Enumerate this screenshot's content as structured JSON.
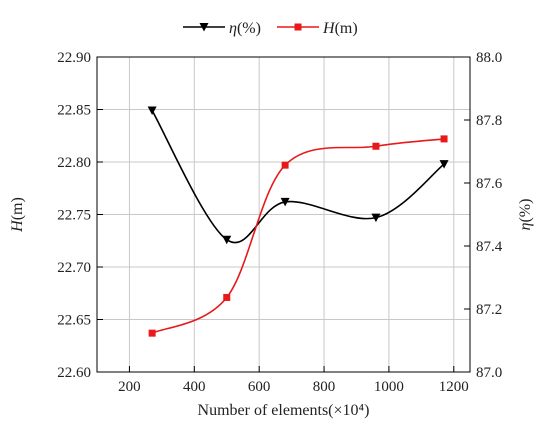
{
  "chart_data": {
    "type": "line",
    "xlabel": "Number of elements(×10⁴)",
    "x_ticks": [
      "200",
      "400",
      "600",
      "800",
      "1000",
      "1200"
    ],
    "xlim": [
      100,
      1250
    ],
    "left_axis": {
      "label_italic": "H",
      "label_rest": "(m)",
      "ylim": [
        22.6,
        22.9
      ],
      "ticks": [
        "22.60",
        "22.65",
        "22.70",
        "22.75",
        "22.80",
        "22.85",
        "22.90"
      ]
    },
    "right_axis": {
      "label_italic": "η",
      "label_rest": "(%)",
      "ylim": [
        87.0,
        88.0
      ],
      "ticks": [
        "87.0",
        "87.2",
        "87.4",
        "87.6",
        "87.8",
        "88.0"
      ]
    },
    "grid": true,
    "legend_position": "top-center",
    "series": [
      {
        "name_italic": "η",
        "name_rest": "(%)",
        "axis": "right",
        "color": "#000000",
        "marker": "triangle-down",
        "x": [
          270,
          500,
          680,
          960,
          1170
        ],
        "y": [
          87.83,
          87.42,
          87.54,
          87.49,
          87.66
        ]
      },
      {
        "name_italic": "H",
        "name_rest": "(m)",
        "axis": "left",
        "color": "#e8191a",
        "marker": "square",
        "x": [
          270,
          500,
          680,
          960,
          1170
        ],
        "y": [
          22.637,
          22.671,
          22.797,
          22.815,
          22.822
        ]
      }
    ]
  }
}
